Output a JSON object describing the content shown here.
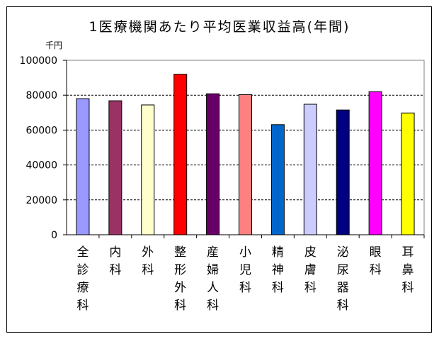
{
  "chart_data": {
    "type": "bar",
    "title": "1医療機関あたり平均医業収益高(年間)",
    "unit_label": "千円",
    "categories": [
      "全診療科",
      "内科",
      "外科",
      "整形外科",
      "産婦人科",
      "小児科",
      "精神科",
      "皮膚科",
      "泌尿器科",
      "眼科",
      "耳鼻科"
    ],
    "values": [
      78000,
      76800,
      74400,
      92000,
      80800,
      80300,
      63100,
      74800,
      71500,
      82000,
      69800
    ],
    "colors": [
      "#9999ff",
      "#993366",
      "#ffffcc",
      "#ff0000",
      "#660066",
      "#ff8080",
      "#0066cc",
      "#ccccff",
      "#000080",
      "#ff00ff",
      "#ffff00"
    ],
    "ylim": [
      0,
      100000
    ],
    "yticks": [
      0,
      20000,
      40000,
      60000,
      80000,
      100000
    ],
    "grid": true
  }
}
